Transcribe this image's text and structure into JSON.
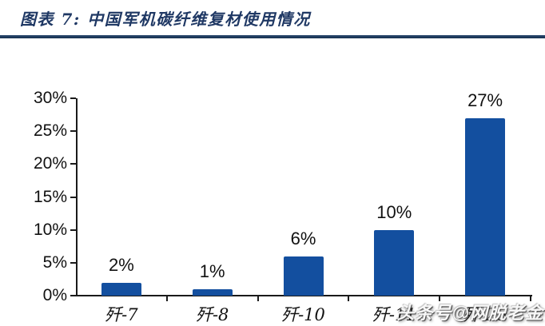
{
  "page": {
    "title": "图表 7: 中国军机碳纤维复材使用情况"
  },
  "colors": {
    "bar": "#134f9f",
    "title_text": "#1f3864",
    "title_rule": "#1c3a5c",
    "axis": "#1a1a1a",
    "label_text": "#111111",
    "background": "#ffffff"
  },
  "watermark": {
    "text": "头条号@网脱老金"
  },
  "chart_data": {
    "type": "bar",
    "title": "图表 7: 中国军机碳纤维复材使用情况",
    "categories": [
      "歼-7",
      "歼-8",
      "歼-10",
      "歼-11",
      "歼-20"
    ],
    "values": [
      2,
      1,
      6,
      10,
      27
    ],
    "value_labels": [
      "2%",
      "1%",
      "6%",
      "10%",
      "27%"
    ],
    "xlabel": "",
    "ylabel": "",
    "ylim": [
      0,
      30
    ],
    "ytick_values": [
      0,
      5,
      10,
      15,
      20,
      25,
      30
    ],
    "ytick_labels": [
      "0%",
      "5%",
      "10%",
      "15%",
      "20%",
      "25%",
      "30%"
    ],
    "grid": false,
    "legend": null,
    "bar_color": "#134f9f"
  }
}
